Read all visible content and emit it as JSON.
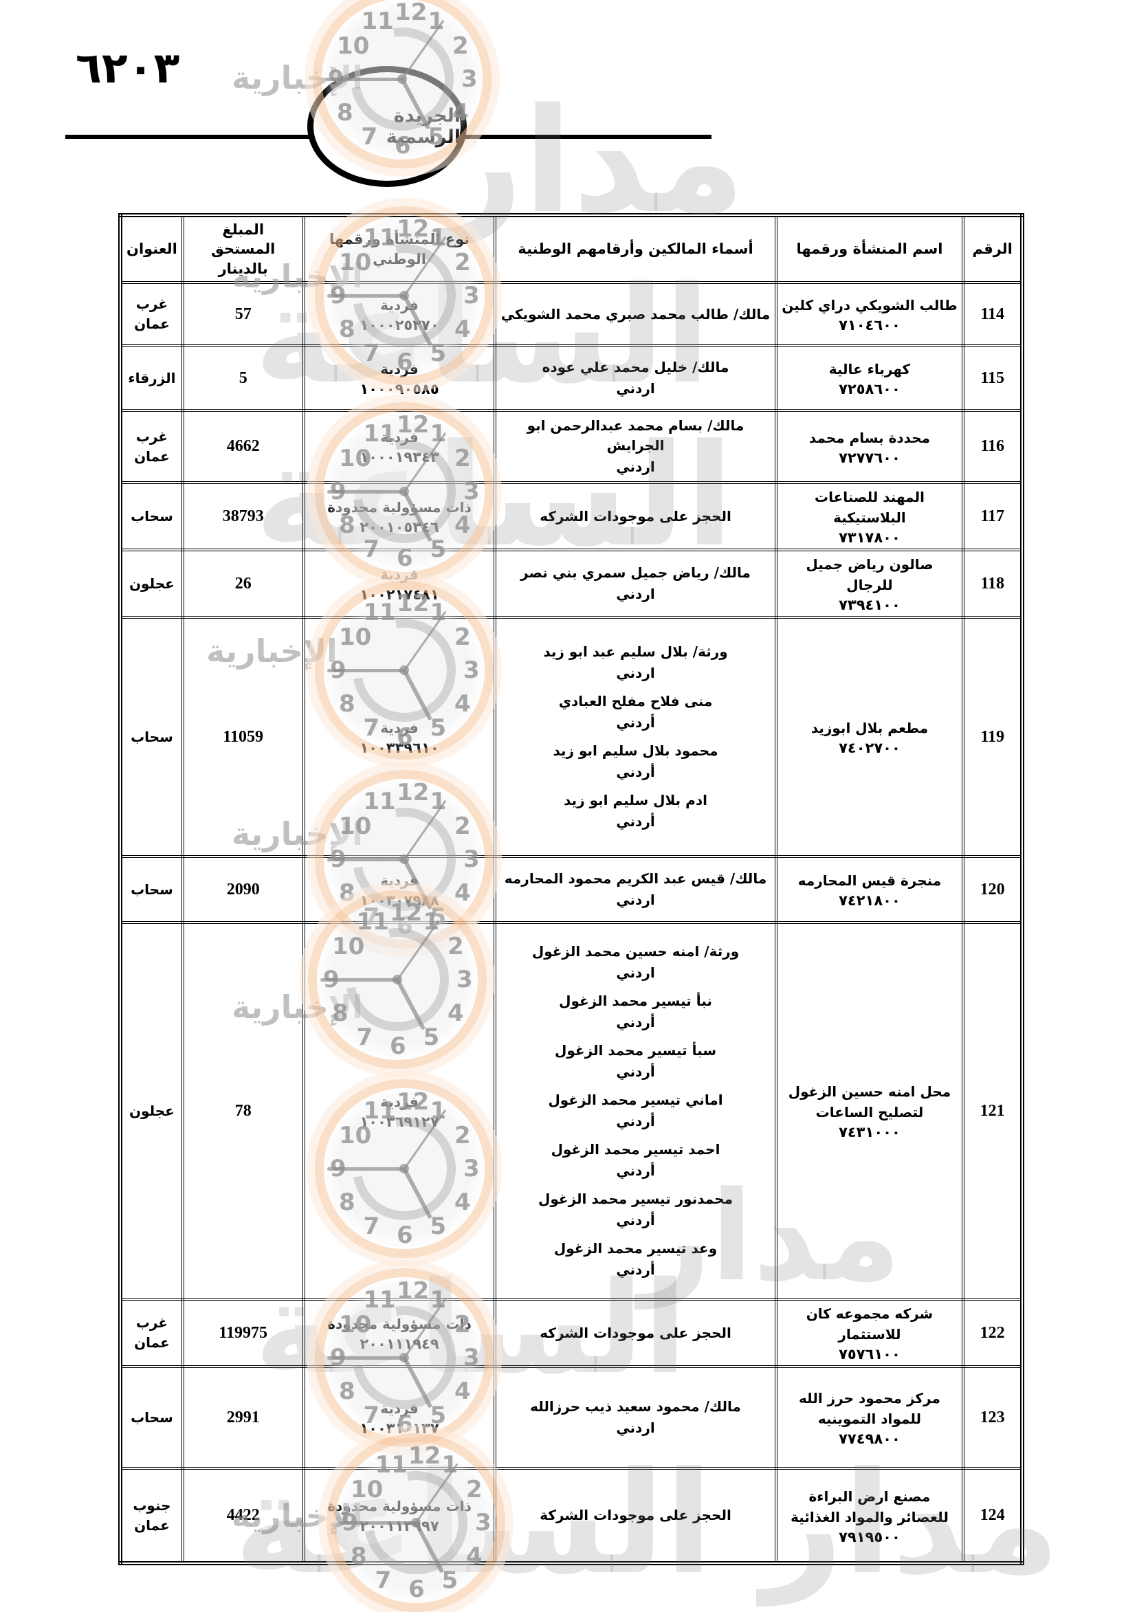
{
  "page": {
    "page_number": "٦٢٠٣",
    "banner": "الجريدة الرسمية"
  },
  "watermark": {
    "brand": "مدار الساعة",
    "brand_word1": "مدار",
    "brand_word2": "الساعة",
    "sub": "الإخبارية"
  },
  "table": {
    "headers": {
      "no": "الرقم",
      "establishment": "اسم المنشأة ورقمها",
      "owners": "أسماء المالكين وأرقامهم الوطنية",
      "type": "نوع المنشأة ورقمها الوطني",
      "amount": "المبلغ المستحق بالدينار",
      "address": "العنوان"
    },
    "rows": [
      {
        "no": "114",
        "est_name": "طالب الشويكي دراي كلين",
        "est_num": "٧١٠٤٦٠٠",
        "owners": [
          {
            "name": "مالك/ طالب محمد صبري محمد الشويكي",
            "nat": ""
          }
        ],
        "type_label": "فردية",
        "type_num": "١٠٠٠٢٥٢٧٠",
        "amount": "57",
        "address": "غرب عمان"
      },
      {
        "no": "115",
        "est_name": "كهرباء عالية",
        "est_num": "٧٢٥٨٦٠٠",
        "owners": [
          {
            "name": "مالك/ خليل محمد علي عوده",
            "nat": "اردني"
          }
        ],
        "type_label": "فردية",
        "type_num": "١٠٠٠٩٠٥٨٥",
        "amount": "5",
        "address": "الزرقاء"
      },
      {
        "no": "116",
        "est_name": "محددة بسام محمد",
        "est_num": "٧٢٧٧٦٠٠",
        "owners": [
          {
            "name": "مالك/ بسام محمد عبدالرحمن ابو الجرايش",
            "nat": "اردني"
          }
        ],
        "type_label": "فردية",
        "type_num": "١٠٠٠١٩٣٤٣",
        "amount": "4662",
        "address": "غرب عمان"
      },
      {
        "no": "117",
        "est_name": "المهند للصناعات البلاستيكية",
        "est_num": "٧٣١٧٨٠٠",
        "owners": [
          {
            "name": "الحجز على موجودات الشركه",
            "nat": ""
          }
        ],
        "type_label": "ذات مسؤولية محدودة",
        "type_num": "٢٠٠١٠٥٣٤٦",
        "amount": "38793",
        "address": "سحاب"
      },
      {
        "no": "118",
        "est_name": "صالون رياض جميل للرجال",
        "est_num": "٧٣٩٤١٠٠",
        "owners": [
          {
            "name": "مالك/ رياض جميل سمري بني نصر",
            "nat": "اردني"
          }
        ],
        "type_label": "فردية",
        "type_num": "١٠٠٢١٧٤٨١",
        "amount": "26",
        "address": "عجلون"
      },
      {
        "no": "119",
        "est_name": "مطعم بلال ابوزيد",
        "est_num": "٧٤٠٢٧٠٠",
        "owners": [
          {
            "name": "ورثة/ بلال سليم عبد ابو زيد",
            "nat": "اردني"
          },
          {
            "name": "منى فلاح مفلح العبادي",
            "nat": "أردني"
          },
          {
            "name": "محمود بلال سليم ابو زيد",
            "nat": "أردني"
          },
          {
            "name": "ادم بلال سليم ابو زيد",
            "nat": "أردني"
          }
        ],
        "type_label": "فردية",
        "type_num": "١٠٠٣٣٩٦١٠",
        "amount": "11059",
        "address": "سحاب"
      },
      {
        "no": "120",
        "est_name": "منجرة قيس المحارمه",
        "est_num": "٧٤٢١٨٠٠",
        "owners": [
          {
            "name": "مالك/ قيس عبد الكريم محمود المحارمه",
            "nat": "اردني"
          }
        ],
        "type_label": "فردية",
        "type_num": "١٠٠٣٠٧٩٨٨",
        "amount": "2090",
        "address": "سحاب"
      },
      {
        "no": "121",
        "est_name": "محل امنه حسين الزغول لتصليح الساعات",
        "est_num": "٧٤٣١٠٠٠",
        "owners": [
          {
            "name": "ورثة/ امنه حسين محمد الزغول",
            "nat": "اردني"
          },
          {
            "name": "نبأ تيسير محمد الزغول",
            "nat": "أردني"
          },
          {
            "name": "سبأ تيسير محمد الزغول",
            "nat": "أردني"
          },
          {
            "name": "اماني تيسير محمد الزغول",
            "nat": "أردني"
          },
          {
            "name": "احمد تيسير محمد الزغول",
            "nat": "أردني"
          },
          {
            "name": "محمدنور تيسير محمد الزغول",
            "nat": "أردني"
          },
          {
            "name": "وعد تيسير محمد الزغول",
            "nat": "أردني"
          }
        ],
        "type_label": "فردية",
        "type_num": "١٠٠٣٦٩١٢٧",
        "amount": "78",
        "address": "عجلون"
      },
      {
        "no": "122",
        "est_name": "شركه مجموعه كان للاستثمار",
        "est_num": "٧٥٧٦١٠٠",
        "owners": [
          {
            "name": "الحجز على موجودات الشركه",
            "nat": ""
          }
        ],
        "type_label": "ذات مسؤولية محدودة",
        "type_num": "٢٠٠١١١٩٤٩",
        "amount": "119975",
        "address": "غرب عمان"
      },
      {
        "no": "123",
        "est_name": "مركز محمود حرز الله للمواد التموينيه",
        "est_num": "٧٧٤٩٨٠٠",
        "owners": [
          {
            "name": "مالك/ محمود سعيد ذيب حرزالله",
            "nat": "اردني"
          }
        ],
        "type_label": "فردية",
        "type_num": "١٠٠٣١٠١٣٧",
        "amount": "2991",
        "address": "سحاب"
      },
      {
        "no": "124",
        "est_name": "مصنع ارض البراءة للعصائر والمواد الغذائية",
        "est_num": "٧٩١٩٥٠٠",
        "owners": [
          {
            "name": "الحجز على موجودات الشركة",
            "nat": ""
          }
        ],
        "type_label": "ذات مسؤولية محدودة",
        "type_num": "٢٠٠١١٣٩٩٧",
        "amount": "4422",
        "address": "جنوب عمان"
      }
    ]
  }
}
